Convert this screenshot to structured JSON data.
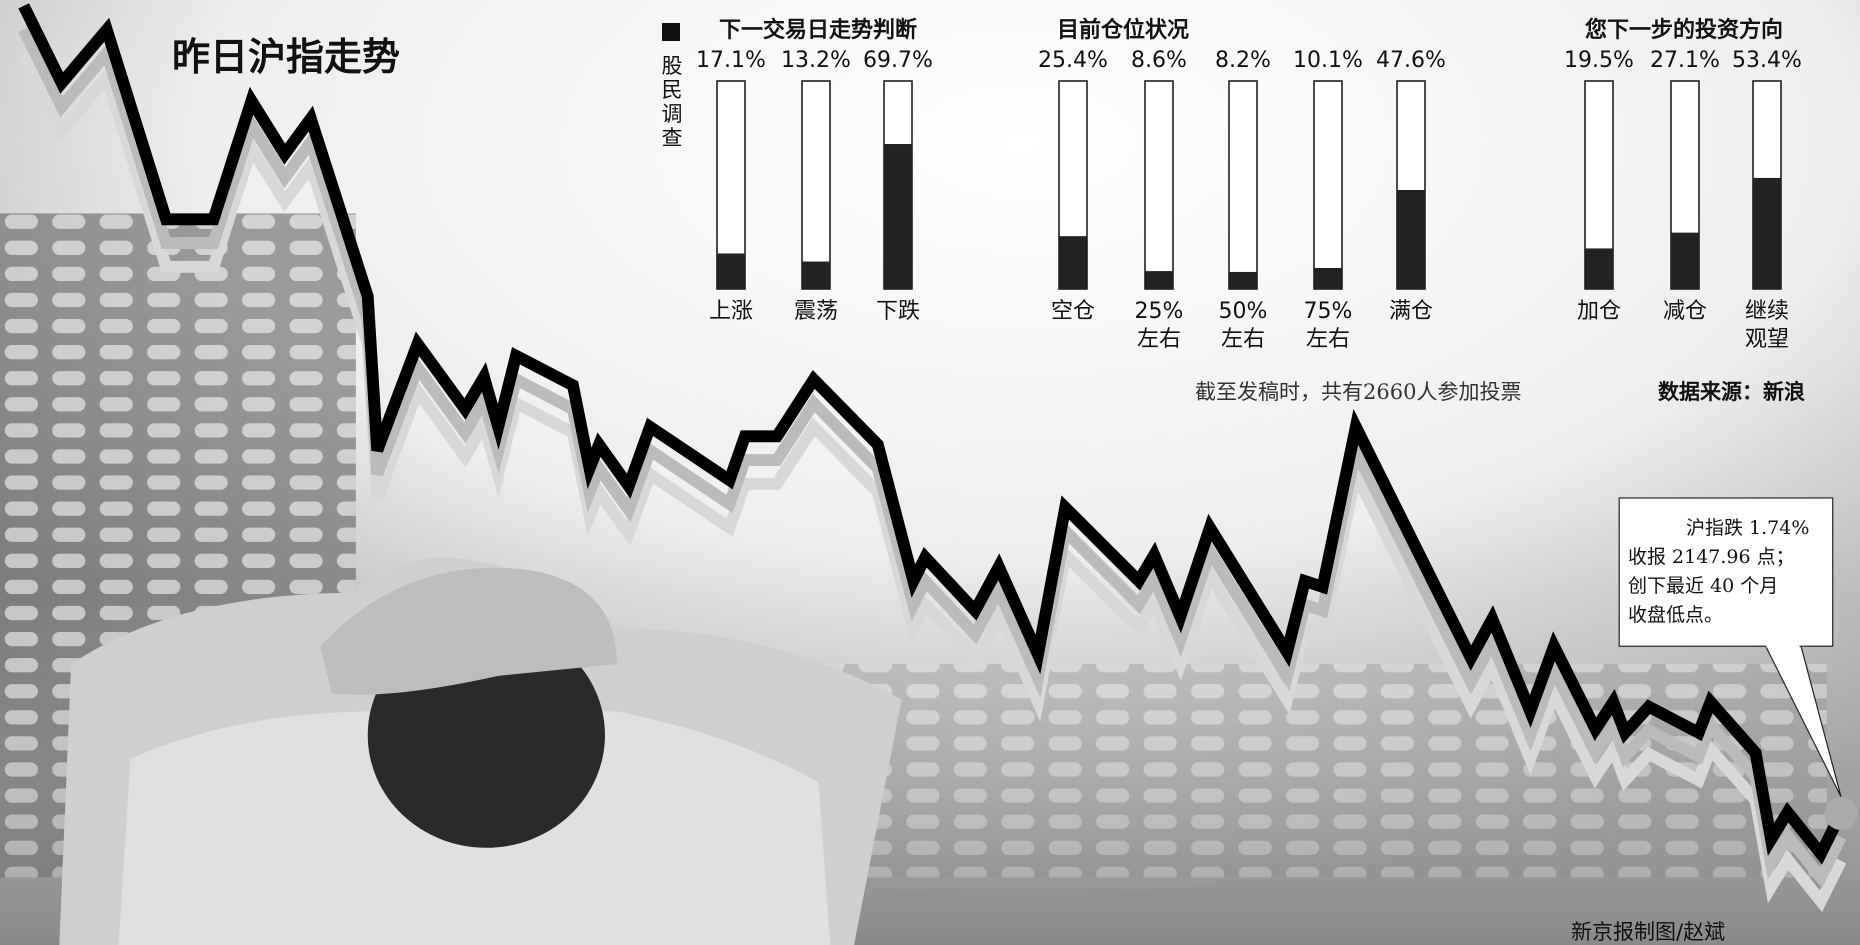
{
  "title": "昨日沪指走势",
  "legend": "股民调查",
  "chart_data": [
    {
      "type": "bar",
      "title": "下一交易日走势判断",
      "categories": [
        "上涨",
        "震荡",
        "下跌"
      ],
      "values": [
        17.1,
        13.2,
        69.7
      ],
      "value_labels": [
        "17.1%",
        "13.2%",
        "69.7%"
      ],
      "ylim": [
        0,
        100
      ],
      "color": "#222222"
    },
    {
      "type": "bar",
      "title": "目前仓位状况",
      "categories": [
        "空仓",
        "25%左右",
        "50%左右",
        "75%左右",
        "满仓"
      ],
      "values": [
        25.4,
        8.6,
        8.2,
        10.1,
        47.6
      ],
      "value_labels": [
        "25.4%",
        "8.6%",
        "8.2%",
        "10.1%",
        "47.6%"
      ],
      "ylim": [
        0,
        100
      ],
      "color": "#222222"
    },
    {
      "type": "bar",
      "title": "您下一步的投资方向",
      "categories": [
        "加仓",
        "减仓",
        "继续观望"
      ],
      "values": [
        19.5,
        27.1,
        53.4
      ],
      "value_labels": [
        "19.5%",
        "27.1%",
        "53.4%"
      ],
      "ylim": [
        0,
        100
      ],
      "color": "#222222"
    }
  ],
  "note": "截至发稿时，共有2660人参加投票",
  "source": "数据来源：新浪",
  "callout": [
    "沪指跌 1.74%",
    "收报 2147.96 点；",
    "创下最近 40 个月",
    "收盘低点。"
  ],
  "credit": "新京报制图/赵斌"
}
